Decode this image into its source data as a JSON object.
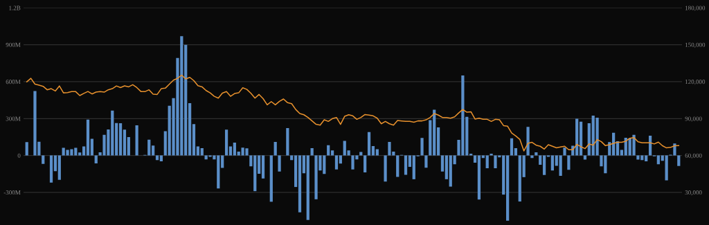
{
  "chart_data": {
    "type": "bar",
    "categories": [
      null,
      null,
      null,
      null,
      null,
      null,
      null,
      null,
      null,
      null,
      null,
      null,
      null,
      null,
      null,
      null,
      null,
      null,
      null,
      null,
      null,
      null,
      null,
      null,
      null,
      null,
      null,
      null,
      null,
      null,
      null,
      null,
      null,
      null,
      null,
      null,
      null,
      null,
      null,
      null,
      null,
      null,
      null,
      null,
      null,
      null,
      null,
      null,
      null,
      null,
      null,
      null,
      null,
      null,
      null,
      null,
      null,
      null,
      null,
      null,
      null,
      null,
      null,
      null,
      null,
      null,
      null,
      null,
      null,
      null,
      null,
      null,
      null,
      null,
      null,
      null,
      null,
      null,
      null,
      null,
      null,
      null,
      null,
      null,
      null,
      null,
      null,
      null,
      null,
      null,
      null,
      null,
      null,
      null,
      null,
      null,
      null,
      null,
      null,
      null,
      null,
      null,
      null,
      null,
      null,
      null,
      null,
      null,
      null,
      null,
      null,
      null,
      null,
      null,
      null,
      null,
      null,
      null,
      null,
      null,
      null,
      null,
      null,
      null,
      null,
      null,
      null,
      null,
      null,
      null,
      null,
      null,
      null,
      null,
      null,
      null,
      null,
      null,
      null,
      null,
      null,
      null,
      null,
      null,
      null,
      null,
      null,
      null,
      null,
      null,
      null,
      null,
      null,
      null,
      null,
      null,
      null,
      null,
      null,
      null,
      null
    ],
    "series": [
      {
        "color": "#5b8fc9",
        "values": [
          109000000.0,
          0,
          524000000.0,
          112000000.0,
          -69000000.0,
          0,
          -221000000.0,
          -127000000.0,
          -198000000.0,
          62000000.0,
          45000000.0,
          51000000.0,
          62000000.0,
          24000000.0,
          73000000.0,
          292000000.0,
          135000000.0,
          -64000000.0,
          26000000.0,
          168000000.0,
          212000000.0,
          365000000.0,
          264000000.0,
          262000000.0,
          210000000.0,
          150000000.0,
          0,
          245000000.0,
          0,
          4000000.0,
          129000000.0,
          80000000.0,
          -37000000.0,
          -47000000.0,
          198000000.0,
          404000000.0,
          466000000.0,
          792000000.0,
          970000000.0,
          899000000.0,
          425000000.0,
          255000000.0,
          73000000.0,
          60000000.0,
          -32000000.0,
          -11000000.0,
          -32000000.0,
          -268000000.0,
          -101000000.0,
          210000000.0,
          73000000.0,
          105000000.0,
          32000000.0,
          64000000.0,
          58000000.0,
          -88000000.0,
          -290000000.0,
          -148000000.0,
          -187000000.0,
          0,
          -376000000.0,
          110000000.0,
          -131000000.0,
          0,
          223000000.0,
          -37000000.0,
          -256000000.0,
          -462000000.0,
          -144000000.0,
          -524000000.0,
          60000000.0,
          -356000000.0,
          -122000000.0,
          -150000000.0,
          84000000.0,
          41000000.0,
          -114000000.0,
          -66000000.0,
          118000000.0,
          41000000.0,
          -114000000.0,
          -32000000.0,
          28000000.0,
          -137000000.0,
          191000000.0,
          77000000.0,
          51000000.0,
          0,
          -212000000.0,
          110000000.0,
          32000000.0,
          -174000000.0,
          4000000.0,
          -157000000.0,
          -92000000.0,
          -193000000.0,
          -6000000.0,
          142000000.0,
          -99000000.0,
          288000000.0,
          372000000.0,
          228000000.0,
          -131000000.0,
          -193000000.0,
          -253000000.0,
          -71000000.0,
          127000000.0,
          650000000.0,
          314000000.0,
          15000000.0,
          -58000000.0,
          -358000000.0,
          -21000000.0,
          -103000000.0,
          15000000.0,
          -103000000.0,
          -15000000.0,
          -318000000.0,
          -530000000.0,
          140000000.0,
          60000000.0,
          -374000000.0,
          -176000000.0,
          232000000.0,
          -21000000.0,
          26000000.0,
          -75000000.0,
          -159000000.0,
          -11000000.0,
          -122000000.0,
          -84000000.0,
          -165000000.0,
          64000000.0,
          -116000000.0,
          79000000.0,
          298000000.0,
          275000000.0,
          -34000000.0,
          262000000.0,
          324000000.0,
          307000000.0,
          -88000000.0,
          -144000000.0,
          109000000.0,
          185000000.0,
          116000000.0,
          45000000.0,
          144000000.0,
          140000000.0,
          168000000.0,
          -34000000.0,
          -37000000.0,
          -47000000.0,
          161000000.0,
          -6000000.0,
          -71000000.0,
          -43000000.0,
          -202000000.0,
          6000000.0,
          97000000.0,
          -86000000.0
        ]
      },
      {
        "type": "line",
        "axis": "y2",
        "color": "#e8912d",
        "values": [
          119900,
          122700,
          118000,
          117100,
          116200,
          113400,
          114300,
          112400,
          116500,
          110900,
          111100,
          112000,
          111900,
          108700,
          110500,
          112000,
          110000,
          111500,
          112000,
          111500,
          113400,
          114300,
          116500,
          115200,
          116600,
          115800,
          117500,
          115200,
          112000,
          111900,
          113400,
          109800,
          109600,
          114300,
          114700,
          118000,
          121200,
          122700,
          125300,
          122200,
          123500,
          120800,
          116700,
          115800,
          112800,
          110900,
          108100,
          106600,
          110700,
          111900,
          108100,
          110400,
          110900,
          115000,
          113700,
          110500,
          106600,
          109600,
          106200,
          101200,
          103800,
          101200,
          104000,
          105900,
          102900,
          102100,
          97400,
          94100,
          93100,
          90900,
          88100,
          85300,
          84700,
          89000,
          87700,
          90000,
          90900,
          85300,
          91800,
          93100,
          92200,
          89400,
          90900,
          93300,
          92800,
          92200,
          90300,
          85800,
          87700,
          85800,
          84700,
          88500,
          88100,
          87700,
          87700,
          87100,
          88100,
          88100,
          89000,
          90900,
          94100,
          92800,
          90900,
          90900,
          90300,
          91400,
          94600,
          97400,
          95200,
          95500,
          89600,
          90300,
          89400,
          89400,
          87700,
          89400,
          89000,
          84300,
          83800,
          78200,
          75900,
          73100,
          63700,
          69900,
          70700,
          68400,
          67500,
          65200,
          68800,
          67500,
          66200,
          66900,
          67500,
          64700,
          64700,
          69000,
          67100,
          65600,
          69400,
          68400,
          72900,
          71200,
          68000,
          68800,
          69900,
          70700,
          70700,
          71600,
          74000,
          74600,
          71200,
          70300,
          70300,
          70300,
          69400,
          70900,
          67900,
          66200,
          66600,
          67900,
          68000
        ]
      }
    ],
    "ylim": [
      -565000000.0,
      1200000000.0
    ],
    "yticks": [
      {
        "value": -300000000.0,
        "label": "-300M"
      },
      0,
      {
        "value": 300000000.0,
        "label": "300M"
      },
      {
        "value": 600000000.0,
        "label": "600M"
      },
      {
        "value": 900000000.0,
        "label": "900M"
      },
      {
        "value": 1200000000.0,
        "label": "1.2B"
      }
    ],
    "y2lim": [
      3500,
      180000
    ],
    "y2ticks": [
      {
        "value": 30000,
        "label": "30,000"
      },
      {
        "value": 60000,
        "label": "60,000"
      },
      {
        "value": 90000,
        "label": "90,000"
      },
      {
        "value": 120000,
        "label": "120,000"
      },
      {
        "value": 150000,
        "label": "150,000"
      },
      {
        "value": 180000,
        "label": "180,000"
      }
    ],
    "grid": "y",
    "tick_labels": "y",
    "marker": "none",
    "line_style": "solid"
  }
}
